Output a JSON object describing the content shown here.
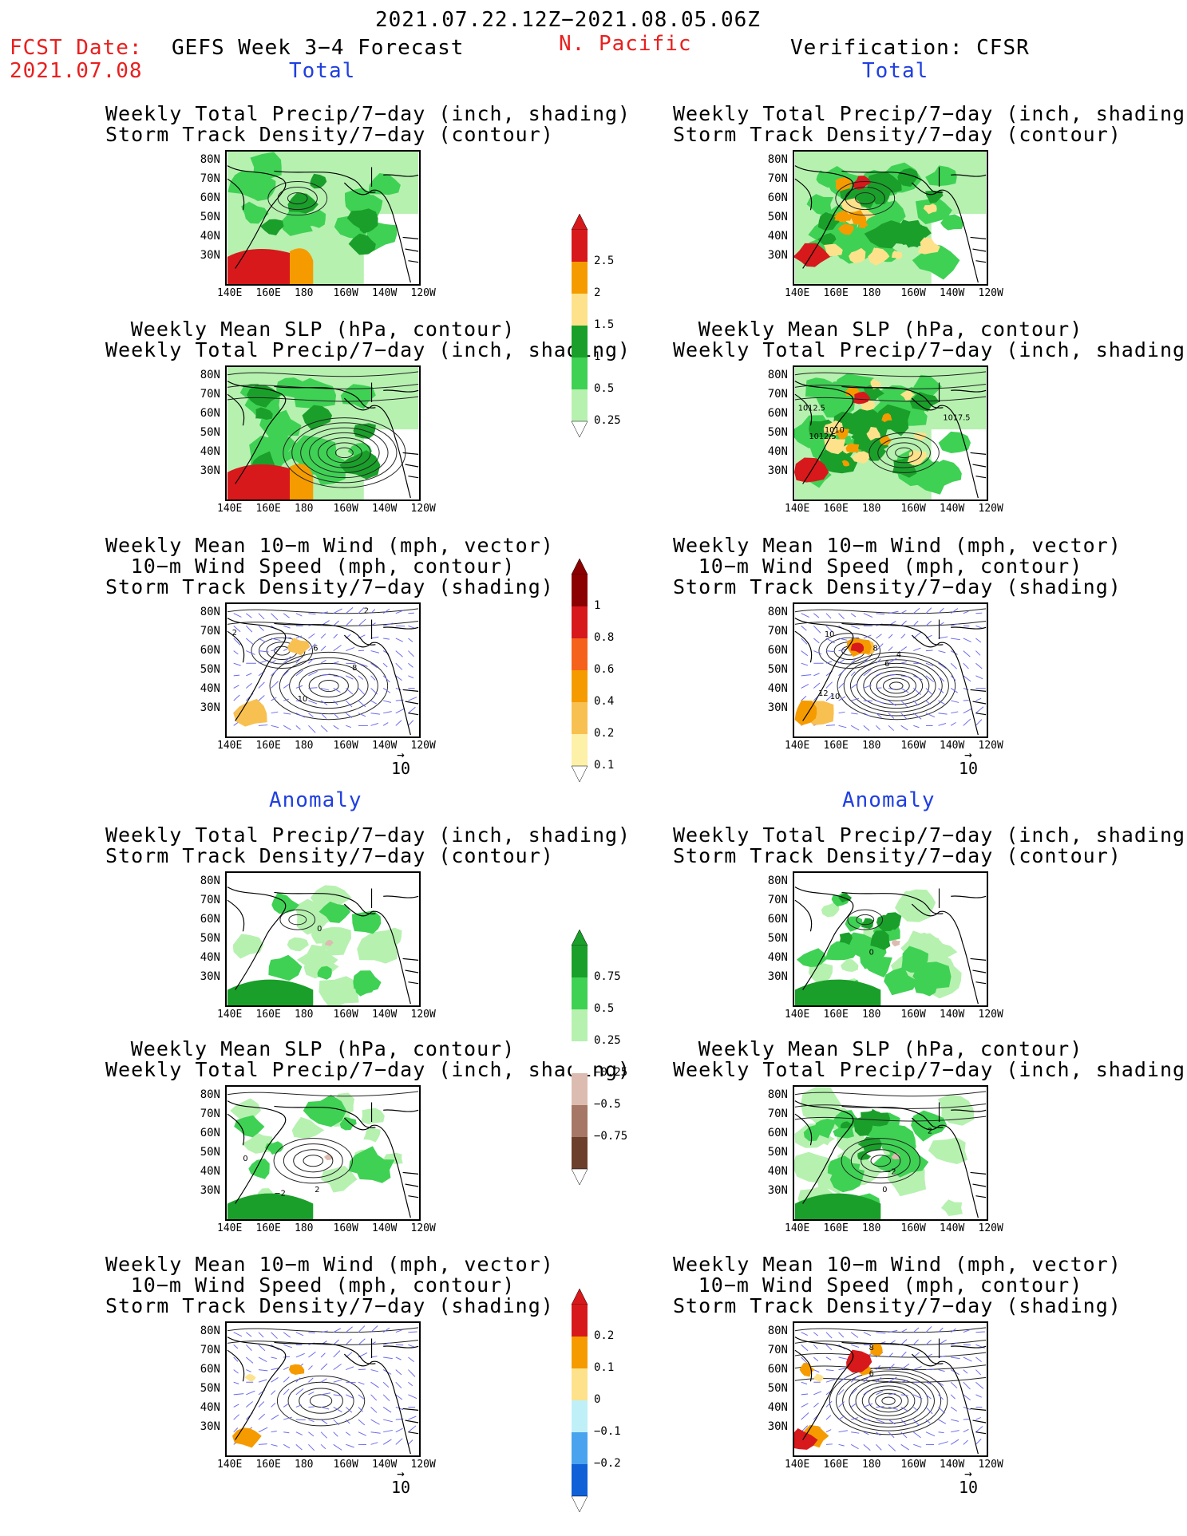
{
  "header": {
    "date_range": "2021.07.22.12Z−2021.08.05.06Z",
    "fcst_label": "FCST Date:",
    "fcst_date": "2021.07.08",
    "left_title": "GEFS Week 3−4 Forecast",
    "region": "N. Pacific",
    "right_title": "Verification: CFSR"
  },
  "sections": {
    "total": "Total",
    "anomaly": "Anomaly"
  },
  "panel_titles": {
    "precip_storm": [
      "Weekly Total Precip/7−day (inch, shading)",
      "Storm Track Density/7−day (contour)"
    ],
    "slp_precip": [
      "Weekly Mean SLP (hPa, contour)",
      "Weekly Total Precip/7−day (inch, shading)"
    ],
    "wind_storm": [
      "Weekly Mean 10−m Wind (mph, vector)",
      "10−m Wind Speed (mph, contour)",
      "Storm Track Density/7−day (shading)"
    ]
  },
  "axes": {
    "lat_labels": [
      "80N",
      "70N",
      "60N",
      "50N",
      "40N",
      "30N"
    ],
    "lon_labels": [
      "140E",
      "160E",
      "180",
      "160W",
      "140W",
      "120W"
    ],
    "vector_ref": "10"
  },
  "contour_labels": {
    "slp_total_right": [
      "1012.5",
      "1017.5",
      "1012.5",
      "1010"
    ],
    "wind_total_left": [
      "2",
      "2",
      "6",
      "8",
      "10"
    ],
    "wind_total_right": [
      "10",
      "12",
      "10",
      "8",
      "6",
      "4"
    ],
    "precip_anom_left": [
      "0"
    ],
    "precip_anom_right": [
      "0"
    ],
    "slp_anom_left": [
      "0",
      "2",
      "−2"
    ],
    "slp_anom_right": [
      "2",
      "0",
      "−2"
    ],
    "wind_anom_right": [
      "8",
      "6"
    ]
  },
  "colorbars": {
    "precip_total": {
      "labels": [
        "2.5",
        "2",
        "1.5",
        "1",
        "0.5",
        "0.25"
      ],
      "colors": [
        "#d7191c",
        "#f59b00",
        "#fde28b",
        "#1a9f2a",
        "#3fd154",
        "#b6f1b0"
      ]
    },
    "storm_total": {
      "labels": [
        "1",
        "0.8",
        "0.6",
        "0.4",
        "0.2",
        "0.1"
      ],
      "colors": [
        "#8b0000",
        "#d7191c",
        "#f4621c",
        "#f59b00",
        "#f8c050",
        "#fdf0a8"
      ]
    },
    "precip_anom": {
      "labels": [
        "0.75",
        "0.5",
        "0.25",
        "−0.25",
        "−0.5",
        "−0.75"
      ],
      "colors": [
        "#1a9f2a",
        "#3fd154",
        "#b6f1b0",
        "#ffffff",
        "#dcbcb0",
        "#a67766",
        "#6b3f2c"
      ]
    },
    "storm_anom": {
      "labels": [
        "0.2",
        "0.1",
        "0",
        "−0.1",
        "−0.2"
      ],
      "colors": [
        "#d7191c",
        "#f59b00",
        "#fde28b",
        "#bff0f8",
        "#4aa3ee",
        "#1060d8"
      ]
    }
  }
}
